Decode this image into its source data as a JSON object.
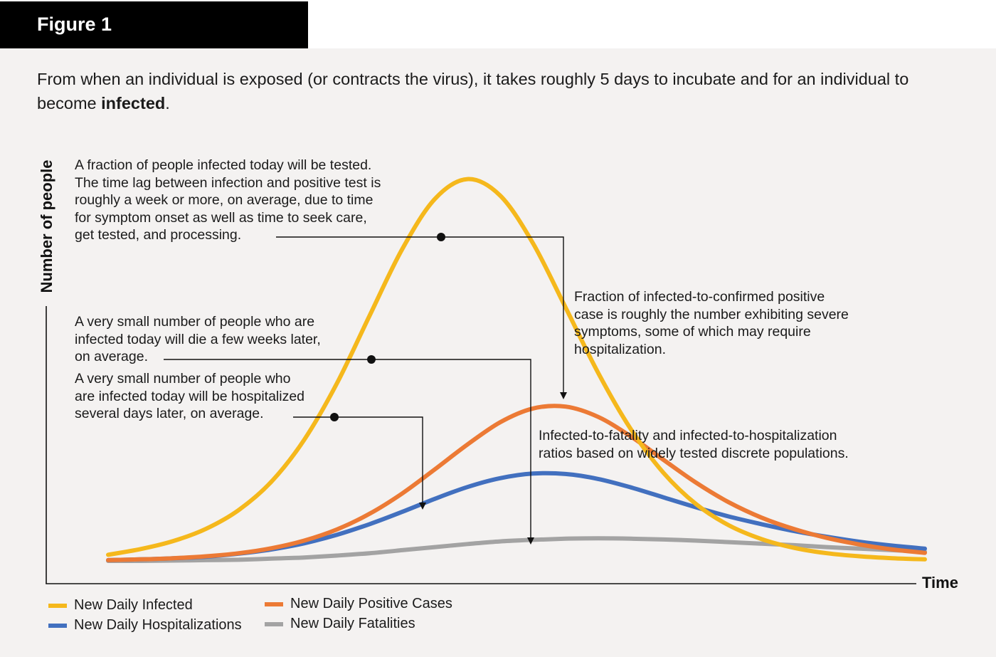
{
  "figure_label": "Figure 1",
  "intro": {
    "text_before": "From when an individual is exposed (or contracts the virus), it takes roughly 5 days to incubate and for an individual to become ",
    "bold": "infected",
    "text_after": "."
  },
  "annotations": {
    "tested": "A fraction of people infected today will be tested.\nThe time lag between infection and positive test is\nroughly a week or more, on average, due to time\nfor symptom onset as well as time to seek care,\nget tested, and processing.",
    "die": "A very small number of people who are\ninfected today will die a few weeks later,\non average.",
    "hospitalized": "A very small number of people who\nare infected today will be hospitalized\nseveral days later, on average.",
    "fraction": "Fraction of infected-to-confirmed positive\ncase is roughly the number exhibiting severe\nsymptoms, some of which may require\nhospitalization.",
    "ratios": "Infected-to-fatality and infected-to-hospitalization\nratios based on widely tested discrete populations."
  },
  "chart_data": {
    "type": "line",
    "xlabel": "Time",
    "ylabel": "Number of people",
    "xlim": [
      0,
      100
    ],
    "ylim": [
      0,
      100
    ],
    "x": [
      0,
      4,
      8,
      12,
      16,
      20,
      24,
      28,
      32,
      36,
      40,
      44,
      48,
      52,
      56,
      60,
      64,
      68,
      72,
      76,
      80,
      84,
      88,
      92,
      96,
      100
    ],
    "series": [
      {
        "name": "New Daily Infected",
        "color": "#f5b81c",
        "values": [
          1.6,
          3.1,
          5.2,
          8.4,
          13.3,
          20.7,
          31.6,
          46.3,
          64.0,
          81.4,
          94.5,
          99.7,
          95.4,
          83.0,
          66.2,
          49.1,
          34.4,
          23.0,
          14.8,
          9.3,
          5.7,
          3.4,
          2.0,
          1.2,
          0.7,
          0.4
        ]
      },
      {
        "name": "New Daily Positive Cases",
        "color": "#ec7a35",
        "values": [
          0.2,
          0.4,
          0.7,
          1.2,
          2.0,
          3.3,
          5.3,
          8.2,
          12.3,
          17.6,
          23.9,
          30.4,
          36.2,
          39.8,
          40.3,
          37.6,
          32.5,
          26.4,
          20.4,
          15.3,
          11.3,
          8.3,
          6.0,
          4.3,
          3.0,
          2.1
        ]
      },
      {
        "name": "New Daily Hospitalizations",
        "color": "#4270bf",
        "values": [
          0.2,
          0.4,
          0.7,
          1.1,
          1.9,
          3.0,
          4.6,
          6.8,
          9.6,
          12.8,
          16.2,
          19.3,
          21.6,
          22.8,
          22.7,
          21.4,
          19.2,
          16.6,
          14.0,
          11.6,
          9.6,
          7.8,
          6.3,
          5.0,
          4.0,
          3.2
        ]
      },
      {
        "name": "New Daily Fatalities",
        "color": "#a3a3a3",
        "values": [
          0.0,
          0.0,
          0.1,
          0.2,
          0.3,
          0.6,
          0.9,
          1.4,
          2.0,
          2.8,
          3.6,
          4.4,
          5.1,
          5.5,
          5.8,
          5.9,
          5.8,
          5.6,
          5.3,
          4.9,
          4.5,
          4.1,
          3.6,
          3.2,
          2.8,
          2.4
        ]
      }
    ],
    "grid": false
  },
  "legend": {
    "infected": "New Daily Infected",
    "hospitalizations": "New Daily Hospitalizations",
    "positive": "New Daily Positive Cases",
    "fatalities": "New Daily Fatalities"
  },
  "colors": {
    "infected": "#f5b81c",
    "positive": "#ec7a35",
    "hospitalizations": "#4270bf",
    "fatalities": "#a3a3a3",
    "axis": "#111111"
  }
}
